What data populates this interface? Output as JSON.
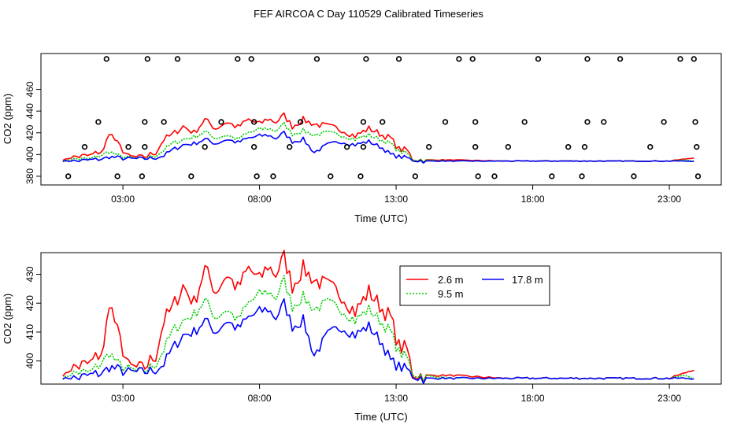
{
  "figure": {
    "title": "FEF AIRCOA C  Day 110529  Calibrated Timeseries"
  },
  "chart_data": [
    {
      "id": "flags",
      "type": "scatter",
      "title": "",
      "xlabel": "Time (UTC)",
      "ylabel": "CO2 (ppm)",
      "xlim": [
        0.0,
        24.9
      ],
      "ylim": [
        372,
        493
      ],
      "xticks": [
        3,
        8,
        13,
        18,
        23
      ],
      "xtick_labels": [
        "03:00",
        "08:00",
        "13:00",
        "18:00",
        "23:00"
      ],
      "yticks": [
        380,
        400,
        420,
        440,
        460
      ],
      "ytick_labels": [
        "380",
        "400",
        "420",
        "440",
        "460"
      ],
      "marker": "open-circle",
      "points": [
        [
          1.0,
          380
        ],
        [
          1.6,
          407
        ],
        [
          2.1,
          430
        ],
        [
          2.4,
          488
        ],
        [
          2.8,
          380
        ],
        [
          3.2,
          407
        ],
        [
          3.7,
          380
        ],
        [
          3.8,
          407
        ],
        [
          3.8,
          430
        ],
        [
          3.9,
          488
        ],
        [
          4.5,
          430
        ],
        [
          5.0,
          488
        ],
        [
          5.5,
          380
        ],
        [
          6.0,
          407
        ],
        [
          6.6,
          430
        ],
        [
          7.2,
          488
        ],
        [
          7.7,
          488
        ],
        [
          7.8,
          430
        ],
        [
          7.8,
          407
        ],
        [
          7.9,
          380
        ],
        [
          8.5,
          380
        ],
        [
          9.1,
          407
        ],
        [
          9.5,
          430
        ],
        [
          10.1,
          488
        ],
        [
          10.6,
          380
        ],
        [
          11.2,
          407
        ],
        [
          11.7,
          380
        ],
        [
          11.8,
          430
        ],
        [
          11.8,
          407
        ],
        [
          11.9,
          488
        ],
        [
          12.5,
          430
        ],
        [
          13.1,
          488
        ],
        [
          13.7,
          380
        ],
        [
          14.2,
          407
        ],
        [
          14.8,
          430
        ],
        [
          15.3,
          488
        ],
        [
          15.8,
          488
        ],
        [
          15.9,
          430
        ],
        [
          15.9,
          407
        ],
        [
          16.0,
          380
        ],
        [
          16.6,
          380
        ],
        [
          17.1,
          407
        ],
        [
          17.7,
          430
        ],
        [
          18.2,
          488
        ],
        [
          18.7,
          380
        ],
        [
          19.3,
          407
        ],
        [
          19.8,
          380
        ],
        [
          19.9,
          407
        ],
        [
          20.0,
          430
        ],
        [
          20.0,
          488
        ],
        [
          20.6,
          430
        ],
        [
          21.2,
          488
        ],
        [
          21.7,
          380
        ],
        [
          22.3,
          407
        ],
        [
          22.8,
          430
        ],
        [
          23.4,
          488
        ],
        [
          23.9,
          488
        ],
        [
          23.95,
          430
        ],
        [
          24.0,
          407
        ],
        [
          24.05,
          380
        ]
      ],
      "series": [
        {
          "name": "2.6 m",
          "color": "#ff0000",
          "values": []
        },
        {
          "name": "9.5 m",
          "color": "#00cc00",
          "values": []
        },
        {
          "name": "17.8 m",
          "color": "#0000ff",
          "values": []
        }
      ]
    },
    {
      "id": "timeseries",
      "type": "line",
      "title": "",
      "xlabel": "Time (UTC)",
      "ylabel": "CO2 (ppm)",
      "xlim": [
        0.0,
        24.9
      ],
      "ylim": [
        392,
        437.5
      ],
      "xticks": [
        3,
        8,
        13,
        18,
        23
      ],
      "xtick_labels": [
        "03:00",
        "08:00",
        "13:00",
        "18:00",
        "23:00"
      ],
      "yticks": [
        400,
        410,
        420,
        430
      ],
      "ytick_labels": [
        "400",
        "410",
        "420",
        "430"
      ],
      "legend": {
        "position": "top-center",
        "columns": 2
      },
      "series": [
        {
          "name": "2.6 m",
          "color": "#ff0000",
          "values": []
        },
        {
          "name": "9.5 m",
          "color": "#00cc00",
          "values": []
        },
        {
          "name": "17.8 m",
          "color": "#0000ff",
          "values": []
        }
      ]
    }
  ],
  "base_series": {
    "x": [
      0.8,
      1.3,
      1.8,
      2.3,
      2.5,
      2.8,
      3.2,
      3.7,
      4.2,
      4.5,
      4.8,
      5.2,
      5.6,
      6.0,
      6.4,
      6.8,
      7.2,
      7.6,
      8.0,
      8.3,
      8.6,
      8.9,
      9.2,
      9.6,
      10.0,
      10.5,
      11.0,
      11.5,
      12.0,
      12.5,
      12.8,
      13.1,
      13.4,
      13.6,
      14.0,
      15.0,
      17.0,
      19.0,
      21.0,
      23.0,
      23.6,
      23.9
    ],
    "red": [
      395,
      398,
      399,
      404,
      421,
      410,
      398,
      397,
      402,
      414,
      418,
      426,
      420,
      432,
      424,
      430,
      425,
      432,
      428,
      433,
      430,
      436,
      426,
      432,
      428,
      426,
      423,
      417,
      424,
      418,
      415,
      405,
      404,
      396,
      395,
      395,
      394,
      394,
      394,
      394,
      396,
      397
    ],
    "green": [
      394,
      396,
      396,
      400,
      403,
      399,
      397,
      396,
      399,
      404,
      410,
      414,
      416,
      421,
      415,
      418,
      414,
      420,
      423,
      424,
      422,
      428,
      419,
      422,
      418,
      420,
      418,
      414,
      418,
      413,
      410,
      403,
      401,
      396,
      395,
      394,
      394,
      394,
      394,
      394,
      395,
      394
    ],
    "blue": [
      394,
      394,
      395,
      396,
      398,
      397,
      396,
      396,
      397,
      399,
      404,
      409,
      410,
      414,
      410,
      414,
      411,
      415,
      417,
      418,
      415,
      420,
      412,
      414,
      402,
      409,
      412,
      409,
      412,
      406,
      400,
      398,
      397,
      395,
      394,
      394,
      394,
      394,
      394,
      394,
      394,
      394
    ]
  }
}
